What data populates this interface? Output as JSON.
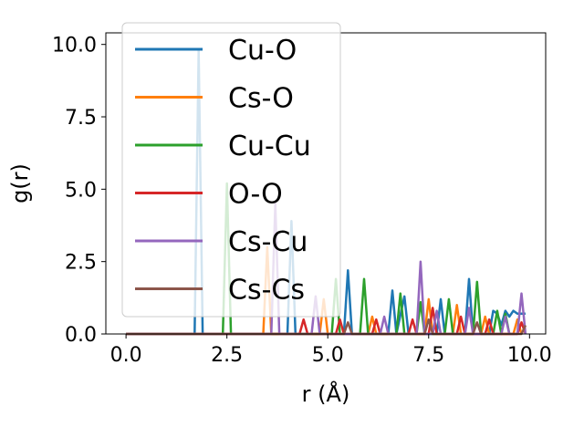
{
  "chart_data": {
    "type": "line",
    "xlabel": "r (Å)",
    "ylabel": "g(r)",
    "xlim": [
      -0.5,
      10.4
    ],
    "ylim": [
      0,
      10.4
    ],
    "x_ticks": [
      0.0,
      2.5,
      5.0,
      7.5,
      10.0
    ],
    "x_tick_labels": [
      "0.0",
      "2.5",
      "5.0",
      "7.5",
      "10.0"
    ],
    "y_ticks": [
      0.0,
      2.5,
      5.0,
      7.5,
      10.0
    ],
    "y_tick_labels": [
      "0.0",
      "2.5",
      "5.0",
      "7.5",
      "10.0"
    ],
    "legend_position": "upper-left",
    "grid": false,
    "series": [
      {
        "name": "Cu-O",
        "color": "#1f77b4",
        "points": [
          [
            0.0,
            0
          ],
          [
            1.7,
            0
          ],
          [
            1.8,
            9.8
          ],
          [
            1.9,
            0
          ],
          [
            4.0,
            0
          ],
          [
            4.1,
            3.9
          ],
          [
            4.2,
            0
          ],
          [
            5.4,
            0
          ],
          [
            5.5,
            2.2
          ],
          [
            5.6,
            0
          ],
          [
            6.5,
            0
          ],
          [
            6.6,
            1.5
          ],
          [
            6.7,
            0
          ],
          [
            6.9,
            1.3
          ],
          [
            7.0,
            0
          ],
          [
            7.7,
            0
          ],
          [
            7.8,
            1.2
          ],
          [
            7.9,
            0
          ],
          [
            8.4,
            0
          ],
          [
            8.5,
            1.9
          ],
          [
            8.6,
            0
          ],
          [
            9.0,
            0
          ],
          [
            9.1,
            0.8
          ],
          [
            9.2,
            0.7
          ],
          [
            9.3,
            0.3
          ],
          [
            9.4,
            0.8
          ],
          [
            9.5,
            0.6
          ],
          [
            9.6,
            0.8
          ],
          [
            9.7,
            0.7
          ],
          [
            9.8,
            0.7
          ],
          [
            9.9,
            0.7
          ]
        ]
      },
      {
        "name": "Cs-O",
        "color": "#ff7f0e",
        "points": [
          [
            0.0,
            0
          ],
          [
            3.4,
            0
          ],
          [
            3.5,
            3.0
          ],
          [
            3.6,
            0
          ],
          [
            4.8,
            0
          ],
          [
            4.9,
            1.2
          ],
          [
            5.0,
            0
          ],
          [
            6.0,
            0
          ],
          [
            6.1,
            0.6
          ],
          [
            6.2,
            0
          ],
          [
            7.4,
            0
          ],
          [
            7.5,
            1.2
          ],
          [
            7.6,
            0
          ],
          [
            8.1,
            0
          ],
          [
            8.2,
            1.0
          ],
          [
            8.3,
            0
          ],
          [
            8.8,
            0
          ],
          [
            8.9,
            0.6
          ],
          [
            9.0,
            0
          ],
          [
            9.6,
            0
          ],
          [
            9.7,
            0.5
          ],
          [
            9.8,
            0
          ]
        ]
      },
      {
        "name": "Cu-Cu",
        "color": "#2ca02c",
        "points": [
          [
            0.0,
            0
          ],
          [
            2.4,
            0
          ],
          [
            2.5,
            5.2
          ],
          [
            2.6,
            0
          ],
          [
            5.1,
            0
          ],
          [
            5.2,
            1.9
          ],
          [
            5.3,
            0
          ],
          [
            5.8,
            0
          ],
          [
            5.9,
            1.9
          ],
          [
            6.0,
            0
          ],
          [
            6.7,
            0
          ],
          [
            6.8,
            1.4
          ],
          [
            6.9,
            0
          ],
          [
            7.2,
            0
          ],
          [
            7.3,
            1.1
          ],
          [
            7.4,
            0
          ],
          [
            7.9,
            0
          ],
          [
            8.0,
            1.2
          ],
          [
            8.1,
            0
          ],
          [
            8.6,
            0
          ],
          [
            8.7,
            1.8
          ],
          [
            8.8,
            0
          ],
          [
            9.1,
            0
          ],
          [
            9.2,
            0.8
          ],
          [
            9.3,
            0
          ],
          [
            9.4,
            0.7
          ],
          [
            9.5,
            0
          ]
        ]
      },
      {
        "name": "O-O",
        "color": "#d62728",
        "points": [
          [
            0.0,
            0
          ],
          [
            4.3,
            0
          ],
          [
            4.4,
            0.5
          ],
          [
            4.5,
            0
          ],
          [
            5.2,
            0
          ],
          [
            5.3,
            0.5
          ],
          [
            5.4,
            0
          ],
          [
            6.1,
            0
          ],
          [
            6.2,
            0.5
          ],
          [
            6.3,
            0
          ],
          [
            7.0,
            0
          ],
          [
            7.1,
            0.5
          ],
          [
            7.2,
            0
          ],
          [
            7.5,
            0
          ],
          [
            7.6,
            0.9
          ],
          [
            7.7,
            0
          ],
          [
            8.2,
            0
          ],
          [
            8.3,
            0.6
          ],
          [
            8.4,
            0
          ],
          [
            8.9,
            0
          ],
          [
            9.0,
            0.5
          ],
          [
            9.1,
            0
          ],
          [
            9.7,
            0
          ],
          [
            9.8,
            0.4
          ],
          [
            9.9,
            0
          ]
        ]
      },
      {
        "name": "Cs-Cu",
        "color": "#9467bd",
        "points": [
          [
            0.0,
            0
          ],
          [
            3.6,
            0
          ],
          [
            3.7,
            4.5
          ],
          [
            3.8,
            0
          ],
          [
            4.6,
            0
          ],
          [
            4.7,
            1.3
          ],
          [
            4.8,
            0
          ],
          [
            6.3,
            0
          ],
          [
            6.4,
            0.6
          ],
          [
            6.5,
            0
          ],
          [
            7.2,
            0
          ],
          [
            7.3,
            2.5
          ],
          [
            7.4,
            0
          ],
          [
            7.6,
            0
          ],
          [
            7.7,
            0.8
          ],
          [
            7.8,
            0
          ],
          [
            8.4,
            0
          ],
          [
            8.5,
            0.9
          ],
          [
            8.6,
            0
          ],
          [
            9.3,
            0
          ],
          [
            9.4,
            0.6
          ],
          [
            9.5,
            0
          ],
          [
            9.7,
            0
          ],
          [
            9.8,
            1.4
          ],
          [
            9.9,
            0
          ]
        ]
      },
      {
        "name": "Cs-Cs",
        "color": "#8c564b",
        "points": [
          [
            0.0,
            0
          ],
          [
            5.4,
            0
          ],
          [
            5.5,
            0.4
          ],
          [
            5.6,
            0
          ],
          [
            7.4,
            0
          ],
          [
            7.5,
            0.5
          ],
          [
            7.6,
            0
          ],
          [
            8.6,
            0
          ],
          [
            8.7,
            0.4
          ],
          [
            8.8,
            0
          ],
          [
            9.8,
            0
          ],
          [
            9.9,
            0.3
          ]
        ]
      }
    ]
  }
}
